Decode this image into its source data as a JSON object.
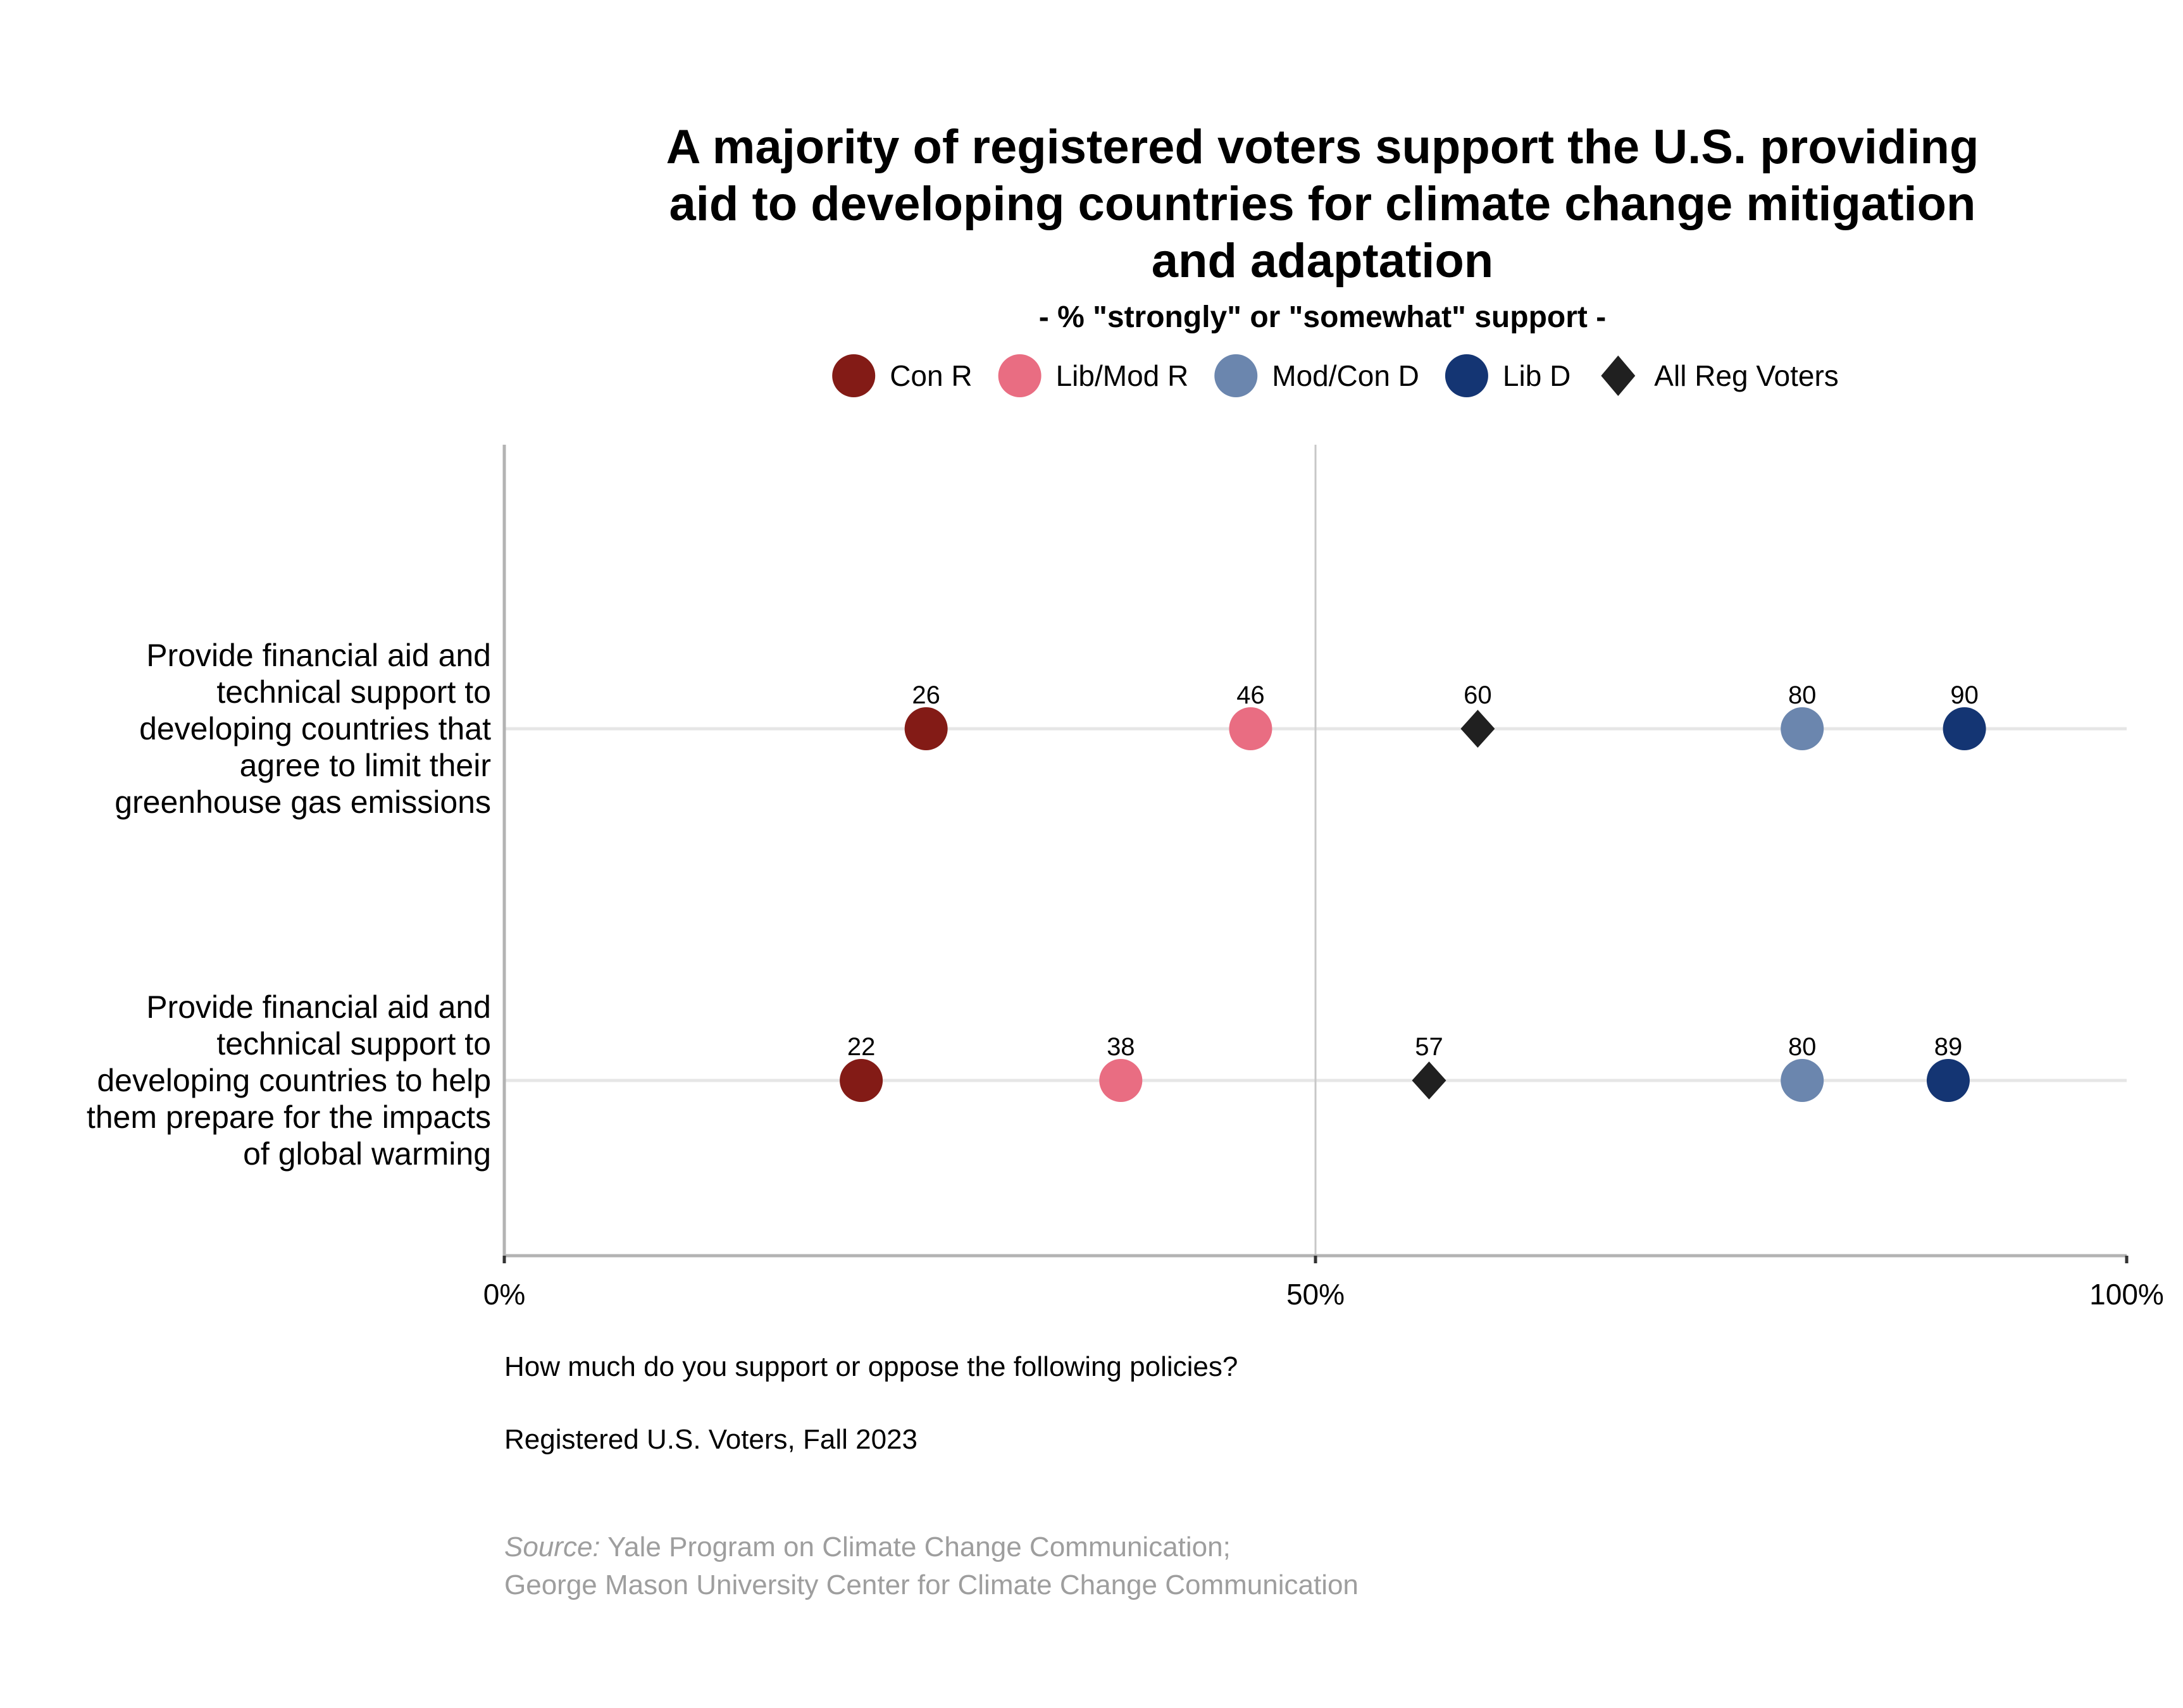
{
  "chart_data": {
    "type": "scatter",
    "subtype": "dot-plot",
    "title": "A majority of registered voters support the U.S. providing aid to developing countries for climate change mitigation and adaptation",
    "title_lines": [
      "A majority of registered voters support the U.S. providing",
      "aid to developing countries for climate change mitigation",
      "and adaptation"
    ],
    "subtitle": "- % \"strongly\" or \"somewhat\" support -",
    "xlabel": "",
    "ylabel": "",
    "xlim": [
      0,
      100
    ],
    "x_ticks": [
      0,
      50,
      100
    ],
    "x_tick_labels": [
      "0%",
      "50%",
      "100%"
    ],
    "legend_position": "top",
    "grid": "major horizontal lines per category; vertical line at 50%",
    "categories": [
      {
        "label": "Provide financial aid and technical support to developing countries that agree to limit their greenhouse gas emissions",
        "label_lines": [
          "Provide financial aid and",
          "technical support to",
          "developing countries that",
          "agree to limit their",
          "greenhouse gas emissions"
        ]
      },
      {
        "label": "Provide financial aid and technical support to developing countries to help them prepare for the impacts of global warming",
        "label_lines": [
          "Provide financial aid and",
          "technical support to",
          "developing countries to help",
          "them prepare for the impacts",
          "of global warming"
        ]
      }
    ],
    "series": [
      {
        "name": "Con R",
        "shape": "circle",
        "color": "#831b16",
        "values": [
          26,
          22
        ]
      },
      {
        "name": "Lib/Mod R",
        "shape": "circle",
        "color": "#e96d82",
        "values": [
          46,
          38
        ]
      },
      {
        "name": "Mod/Con D",
        "shape": "circle",
        "color": "#6b86ae",
        "values": [
          80,
          80
        ]
      },
      {
        "name": "Lib D",
        "shape": "circle",
        "color": "#143573",
        "values": [
          90,
          89
        ]
      },
      {
        "name": "All Reg Voters",
        "shape": "diamond",
        "color": "#202020",
        "values": [
          60,
          57
        ]
      }
    ],
    "captions": [
      "How much do you support or oppose the following policies?",
      "Registered U.S. Voters, Fall 2023"
    ],
    "source": {
      "prefix": "Source:",
      "line1": " Yale Program on Climate Change Communication;",
      "line2": "George Mason University Center for Climate Change Communication"
    }
  }
}
